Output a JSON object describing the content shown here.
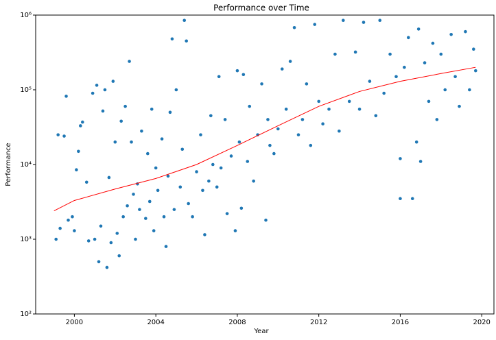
{
  "chart_data": {
    "type": "scatter",
    "title": "Performance over Time",
    "x_label": "Year",
    "y_label": "Performance",
    "xlim": [
      1998.1,
      2020.6
    ],
    "ylim": [
      100,
      1000000
    ],
    "yscale": "log",
    "xticks": [
      2000,
      2004,
      2008,
      2012,
      2016,
      2020
    ],
    "yticks": [
      {
        "value": 100,
        "label": "10²"
      },
      {
        "value": 1000,
        "label": "10³"
      },
      {
        "value": 10000,
        "label": "10⁴"
      },
      {
        "value": 100000,
        "label": "10⁵"
      },
      {
        "value": 1000000,
        "label": "10⁶"
      }
    ],
    "series": [
      {
        "type": "scatter",
        "color": "#1f77b4",
        "x": [
          1999.1,
          1999.2,
          1999.3,
          1999.5,
          1999.6,
          1999.7,
          1999.9,
          2000.0,
          2000.1,
          2000.2,
          2000.3,
          2000.4,
          2000.6,
          2000.7,
          2000.9,
          2001.0,
          2001.1,
          2001.2,
          2001.3,
          2001.4,
          2001.5,
          2001.6,
          2001.7,
          2001.8,
          2001.9,
          2002.0,
          2002.1,
          2002.2,
          2002.3,
          2002.4,
          2002.5,
          2002.6,
          2002.7,
          2002.8,
          2002.9,
          2003.0,
          2003.1,
          2003.2,
          2003.3,
          2003.5,
          2003.6,
          2003.7,
          2003.8,
          2003.9,
          2004.0,
          2004.1,
          2004.3,
          2004.4,
          2004.5,
          2004.6,
          2004.7,
          2004.8,
          2004.9,
          2005.0,
          2005.2,
          2005.3,
          2005.4,
          2005.5,
          2005.6,
          2005.8,
          2006.0,
          2006.2,
          2006.3,
          2006.4,
          2006.6,
          2006.7,
          2006.8,
          2007.0,
          2007.1,
          2007.2,
          2007.4,
          2007.5,
          2007.7,
          2007.9,
          2008.0,
          2008.1,
          2008.2,
          2008.3,
          2008.5,
          2008.6,
          2008.8,
          2009.0,
          2009.2,
          2009.4,
          2009.5,
          2009.6,
          2009.8,
          2010.0,
          2010.2,
          2010.4,
          2010.6,
          2010.8,
          2011.0,
          2011.2,
          2011.4,
          2011.6,
          2011.8,
          2012.0,
          2012.2,
          2012.5,
          2012.8,
          2013.0,
          2013.2,
          2013.5,
          2013.8,
          2014.0,
          2014.2,
          2014.5,
          2014.8,
          2015.0,
          2015.2,
          2015.5,
          2015.8,
          2016.0,
          2016.0,
          2016.2,
          2016.4,
          2016.6,
          2016.8,
          2016.9,
          2017.0,
          2017.2,
          2017.4,
          2017.6,
          2017.8,
          2018.0,
          2018.2,
          2018.5,
          2018.7,
          2018.9,
          2019.2,
          2019.4,
          2019.6,
          2019.7
        ],
        "values": [
          1000,
          25000,
          1400,
          24000,
          82000,
          1800,
          2000,
          1300,
          8500,
          15000,
          33000,
          37000,
          5800,
          950,
          90000,
          1000,
          115000,
          500,
          1500,
          52000,
          100000,
          420,
          6700,
          900,
          130000,
          20000,
          1200,
          600,
          38000,
          2000,
          60000,
          2800,
          240000,
          20000,
          4000,
          1000,
          5500,
          2500,
          28000,
          1900,
          14000,
          3200,
          55000,
          1300,
          9000,
          4500,
          22000,
          2000,
          800,
          7000,
          50000,
          480000,
          2500,
          100000,
          5000,
          16000,
          850000,
          450000,
          3000,
          2000,
          8000,
          25000,
          4500,
          1150,
          6000,
          45000,
          10000,
          5000,
          150000,
          9000,
          40000,
          2200,
          13000,
          1300,
          180000,
          20000,
          2600,
          160000,
          11000,
          60000,
          6000,
          25000,
          120000,
          1800,
          40000,
          18000,
          14000,
          30000,
          190000,
          55000,
          240000,
          680000,
          25000,
          40000,
          120000,
          18000,
          750000,
          70000,
          35000,
          55000,
          300000,
          28000,
          850000,
          70000,
          320000,
          55000,
          800000,
          130000,
          45000,
          850000,
          90000,
          300000,
          150000,
          12000,
          3500,
          200000,
          500000,
          3500,
          20000,
          650000,
          11000,
          230000,
          70000,
          420000,
          40000,
          300000,
          100000,
          550000,
          150000,
          60000,
          600000,
          100000,
          350000,
          180000
        ]
      },
      {
        "type": "line",
        "color": "#ff0000",
        "x": [
          1999.0,
          2000.0,
          2002.0,
          2004.0,
          2006.0,
          2008.0,
          2010.0,
          2012.0,
          2014.0,
          2016.0,
          2018.0,
          2019.7
        ],
        "values": [
          2400,
          3300,
          4700,
          6500,
          10000,
          18000,
          33000,
          60000,
          95000,
          130000,
          165000,
          200000
        ]
      }
    ]
  }
}
